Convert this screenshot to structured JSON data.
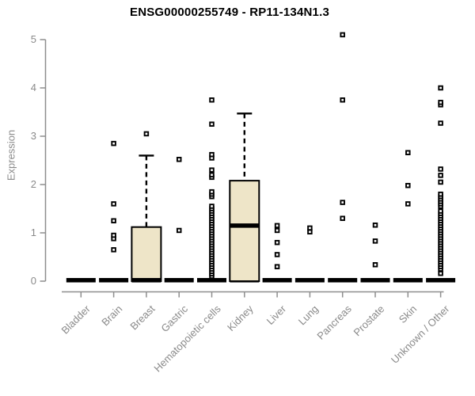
{
  "chart_data": {
    "type": "boxplot",
    "title": "ENSG00000255749 - RP11-134N1.3",
    "ylabel": "Expression",
    "xlabel": "",
    "ylim": [
      0,
      5
    ],
    "yticks": [
      0,
      1,
      2,
      3,
      4,
      5
    ],
    "grid": false,
    "legend": "none",
    "colors": {
      "box_fill": "#EEE5C8",
      "box_border": "#000000",
      "axis_line": "#8E8E8E",
      "tick_text": "#8A8A8A",
      "title_text": "#000000",
      "marker": "#000000"
    },
    "categories": [
      "Bladder",
      "Brain",
      "Breast",
      "Gastric",
      "Hematopoietic cells",
      "Kidney",
      "Liver",
      "Lung",
      "Pancreas",
      "Prostate",
      "Skin",
      "Unknown / Other"
    ],
    "series": [
      {
        "category": "Bladder",
        "box": false,
        "median": 0.02,
        "outliers": []
      },
      {
        "category": "Brain",
        "box": false,
        "median": 0.02,
        "outliers": [
          0.65,
          0.88,
          0.95,
          1.25,
          1.6,
          2.85
        ]
      },
      {
        "category": "Breast",
        "box": true,
        "q1": 0,
        "median": 0.02,
        "q3": 1.12,
        "whisker_low": 0,
        "whisker_high": 2.6,
        "outliers": [
          3.05
        ]
      },
      {
        "category": "Gastric",
        "box": false,
        "median": 0.02,
        "outliers": [
          1.05,
          2.52
        ]
      },
      {
        "category": "Hematopoietic cells",
        "box": false,
        "median": 0.02,
        "outliers": [
          0.1,
          0.15,
          0.2,
          0.25,
          0.3,
          0.35,
          0.4,
          0.45,
          0.5,
          0.55,
          0.6,
          0.65,
          0.7,
          0.75,
          0.8,
          0.85,
          0.9,
          0.95,
          1.0,
          1.05,
          1.1,
          1.15,
          1.2,
          1.25,
          1.3,
          1.35,
          1.4,
          1.45,
          1.5,
          1.55,
          1.75,
          1.8,
          1.85,
          2.15,
          2.2,
          2.3,
          2.55,
          2.62,
          3.25,
          3.75
        ]
      },
      {
        "category": "Kidney",
        "box": true,
        "q1": 0,
        "median": 1.15,
        "q3": 2.08,
        "whisker_low": 0,
        "whisker_high": 3.47,
        "outliers": []
      },
      {
        "category": "Liver",
        "box": false,
        "median": 0.02,
        "outliers": [
          0.3,
          0.55,
          0.8,
          1.05,
          1.15
        ]
      },
      {
        "category": "Lung",
        "box": false,
        "median": 0.02,
        "outliers": [
          1.02,
          1.1
        ]
      },
      {
        "category": "Pancreas",
        "box": false,
        "median": 0.02,
        "outliers": [
          1.3,
          1.63,
          3.75,
          5.1
        ]
      },
      {
        "category": "Prostate",
        "box": false,
        "median": 0.02,
        "outliers": [
          0.34,
          0.83,
          1.16
        ]
      },
      {
        "category": "Skin",
        "box": false,
        "median": 0.02,
        "outliers": [
          1.6,
          1.98,
          2.66
        ]
      },
      {
        "category": "Unknown / Other",
        "box": false,
        "median": 0.02,
        "outliers": [
          0.16,
          0.25,
          0.3,
          0.35,
          0.4,
          0.45,
          0.5,
          0.55,
          0.6,
          0.65,
          0.7,
          0.75,
          0.8,
          0.85,
          0.9,
          0.95,
          1.0,
          1.05,
          1.1,
          1.15,
          1.2,
          1.25,
          1.3,
          1.35,
          1.4,
          1.45,
          1.55,
          1.6,
          1.65,
          1.7,
          1.75,
          1.8,
          2.05,
          2.19,
          2.32,
          3.27,
          3.65,
          3.7,
          4.0
        ]
      }
    ]
  }
}
